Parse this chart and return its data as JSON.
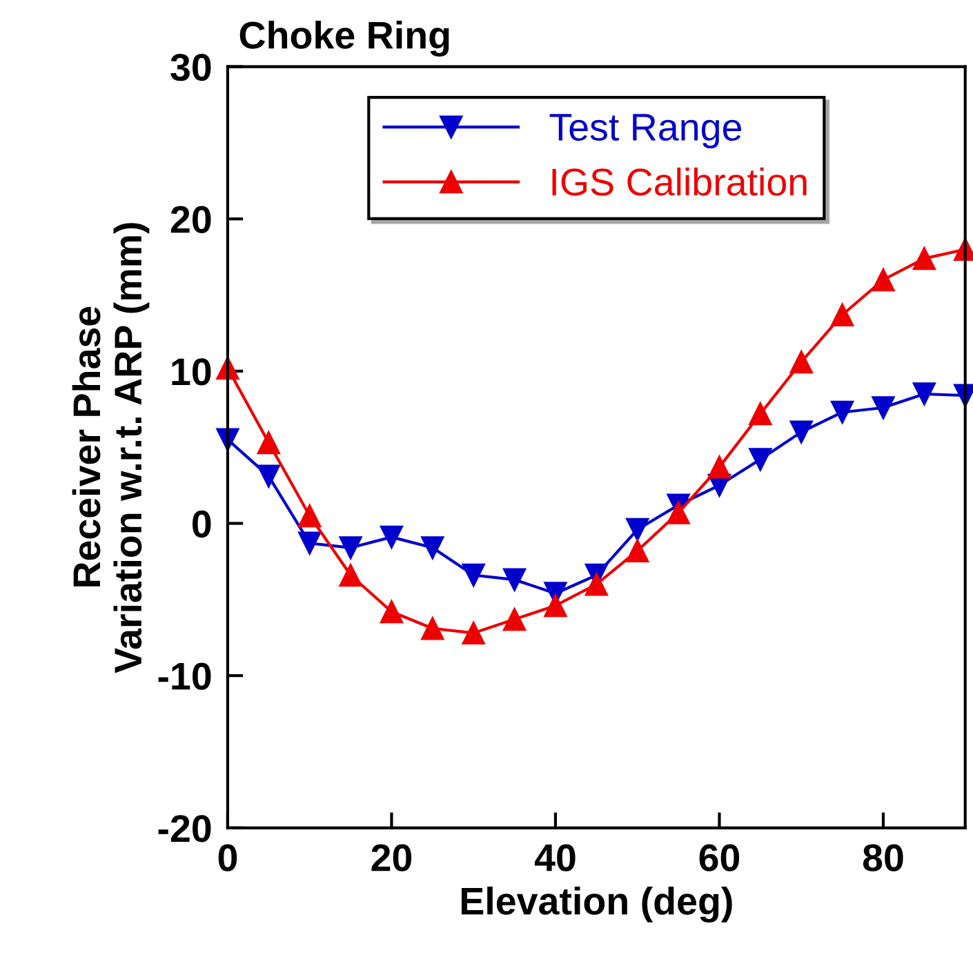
{
  "chart_data": {
    "type": "line",
    "title": "Choke Ring",
    "xlabel": "Elevation (deg)",
    "ylabel": "Receiver Phase\nVariation w.r.t. ARP (mm)",
    "x": [
      0,
      5,
      10,
      15,
      20,
      25,
      30,
      35,
      40,
      45,
      50,
      55,
      60,
      65,
      70,
      75,
      80,
      85,
      90
    ],
    "series": [
      {
        "name": "Test Range",
        "color": "#0000cc",
        "marker": "triangle_down",
        "values": [
          5.5,
          3.1,
          -1.3,
          -1.6,
          -0.9,
          -1.6,
          -3.4,
          -3.7,
          -4.6,
          -3.4,
          -0.4,
          1.2,
          2.5,
          4.2,
          6.0,
          7.3,
          7.6,
          8.5,
          8.4
        ]
      },
      {
        "name": "IGS Calibration",
        "color": "#ee0000",
        "marker": "triangle",
        "values": [
          10.2,
          5.3,
          0.5,
          -3.4,
          -5.8,
          -6.9,
          -7.2,
          -6.3,
          -5.4,
          -4.0,
          -1.8,
          0.7,
          3.7,
          7.2,
          10.6,
          13.7,
          16.0,
          17.4,
          18.0
        ]
      }
    ],
    "xlim": [
      0,
      90
    ],
    "xticks": [
      0,
      20,
      40,
      60,
      80
    ],
    "ylim": [
      -20,
      30
    ],
    "yticks": [
      -20,
      -10,
      0,
      10,
      20,
      30
    ],
    "grid": false,
    "legend": "top",
    "line_style": "solid"
  }
}
